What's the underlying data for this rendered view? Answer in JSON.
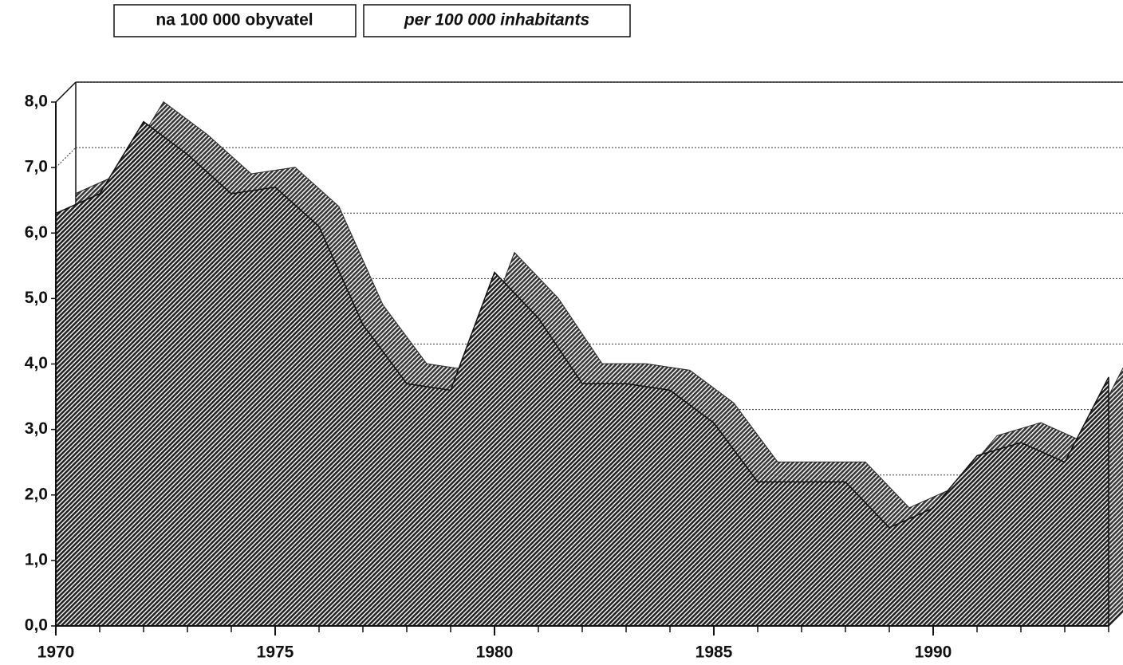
{
  "chart_data": {
    "type": "area",
    "labels": [
      "na 100 000 obyvatel",
      "per 100 000 inhabitants"
    ],
    "x": [
      1970,
      1971,
      1972,
      1973,
      1974,
      1975,
      1976,
      1977,
      1978,
      1979,
      1980,
      1981,
      1982,
      1983,
      1984,
      1985,
      1986,
      1987,
      1988,
      1989,
      1990,
      1991,
      1992,
      1993,
      1994
    ],
    "values": [
      6.3,
      6.6,
      7.7,
      7.2,
      6.6,
      6.7,
      6.1,
      4.6,
      3.7,
      3.6,
      5.4,
      4.7,
      3.7,
      3.7,
      3.6,
      3.1,
      2.2,
      2.2,
      2.2,
      1.5,
      1.8,
      2.6,
      2.8,
      2.5,
      3.8
    ],
    "color": "#222222",
    "xlim": [
      1970,
      1994
    ],
    "xticks": [
      1970,
      1975,
      1980,
      1985,
      1990
    ],
    "ylim": [
      0,
      8
    ],
    "yticks": [
      {
        "value": 0,
        "label": "0,0"
      },
      {
        "value": 1,
        "label": "1,0"
      },
      {
        "value": 2,
        "label": "2,0"
      },
      {
        "value": 3,
        "label": "3,0"
      },
      {
        "value": 4,
        "label": "4,0"
      },
      {
        "value": 5,
        "label": "5,0"
      },
      {
        "value": 6,
        "label": "6,0"
      },
      {
        "value": 7,
        "label": "7,0"
      },
      {
        "value": 8,
        "label": "8,0"
      }
    ],
    "grid": true
  }
}
